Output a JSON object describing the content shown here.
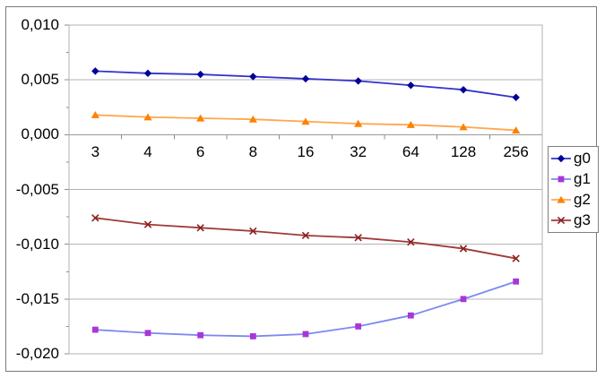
{
  "chart_data": {
    "type": "line",
    "title": "",
    "xlabel": "",
    "ylabel": "",
    "categories": [
      "3",
      "4",
      "6",
      "8",
      "16",
      "32",
      "64",
      "128",
      "256"
    ],
    "series": [
      {
        "name": "g0",
        "marker": "diamond",
        "line_color": "#3333cc",
        "marker_color": "#000099",
        "values": [
          0.0058,
          0.0056,
          0.0055,
          0.0053,
          0.0051,
          0.0049,
          0.0045,
          0.0041,
          0.0034
        ]
      },
      {
        "name": "g1",
        "marker": "square",
        "line_color": "#7c88f0",
        "marker_color": "#a936d9",
        "values": [
          -0.0178,
          -0.0181,
          -0.0183,
          -0.0184,
          -0.0182,
          -0.0175,
          -0.0165,
          -0.015,
          -0.0134
        ]
      },
      {
        "name": "g2",
        "marker": "triangle",
        "line_color": "#ffa64d",
        "marker_color": "#ff8000",
        "values": [
          0.0018,
          0.0016,
          0.0015,
          0.0014,
          0.0012,
          0.001,
          0.0009,
          0.0007,
          0.0004
        ]
      },
      {
        "name": "g3",
        "marker": "x",
        "line_color": "#9e3b38",
        "marker_color": "#8b1e1e",
        "values": [
          -0.0076,
          -0.0082,
          -0.0085,
          -0.0088,
          -0.0092,
          -0.0094,
          -0.0098,
          -0.0104,
          -0.0113
        ]
      }
    ],
    "ylim": [
      -0.02,
      0.01
    ],
    "y_major_step": 0.005,
    "y_minor_step": 0.0025,
    "y_tick_labels": [
      "0,010",
      "0,005",
      "0,000",
      "-0,005",
      "-0,010",
      "-0,015",
      "-0,020"
    ],
    "grid": "horizontal-major",
    "legend_position": "right",
    "legend_items": [
      "g0",
      "g1",
      "g2",
      "g3"
    ],
    "number_format": "comma-decimal"
  },
  "colors": {
    "background": "#ffffff",
    "frame_border": "#7a7a7a",
    "plot_border": "#aab4b4",
    "gridline": "#b3b3b3",
    "zero_axis": "#9a9a9a",
    "tick": "#8c8c8c",
    "text": "#000000"
  }
}
